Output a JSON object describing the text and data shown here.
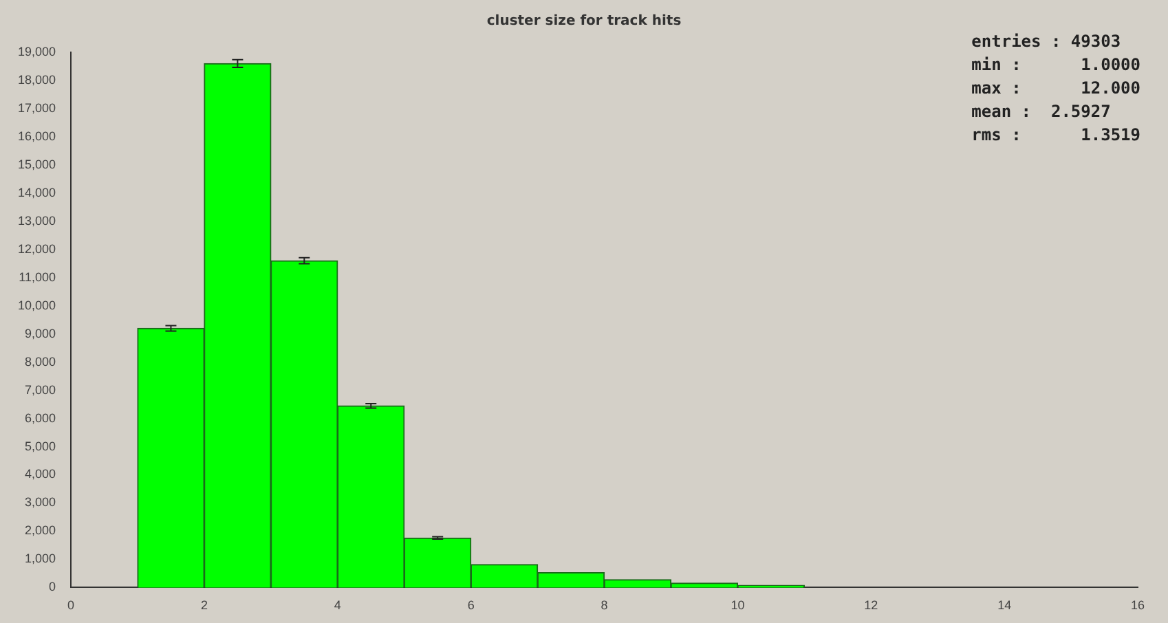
{
  "chart_data": {
    "type": "histogram",
    "title": "cluster size for track hits",
    "bins": [
      1,
      2,
      3,
      4,
      5,
      6,
      7,
      8,
      9,
      10,
      11,
      12,
      13
    ],
    "values": [
      9200,
      18600,
      11600,
      6450,
      1760,
      820,
      530,
      280,
      160,
      80,
      null,
      null
    ],
    "errors": [
      96,
      136,
      108,
      80,
      42,
      null,
      null,
      null,
      null,
      null,
      null,
      null
    ],
    "color": "#00ff00",
    "xlim": [
      0,
      16
    ],
    "xticks": [
      0,
      2,
      4,
      6,
      8,
      10,
      12,
      14,
      16
    ],
    "ylim": [
      0,
      19000
    ],
    "yticks": [
      0,
      {
        "value": 1000,
        "label": "1,000"
      },
      {
        "value": 2000,
        "label": "2,000"
      },
      {
        "value": 3000,
        "label": "3,000"
      },
      {
        "value": 4000,
        "label": "4,000"
      },
      {
        "value": 5000,
        "label": "5,000"
      },
      {
        "value": 6000,
        "label": "6,000"
      },
      {
        "value": 7000,
        "label": "7,000"
      },
      {
        "value": 8000,
        "label": "8,000"
      },
      {
        "value": 9000,
        "label": "9,000"
      },
      {
        "value": 10000,
        "label": "10,000"
      },
      {
        "value": 11000,
        "label": "11,000"
      },
      {
        "value": 12000,
        "label": "12,000"
      },
      {
        "value": 13000,
        "label": "13,000"
      },
      {
        "value": 14000,
        "label": "14,000"
      },
      {
        "value": 15000,
        "label": "15,000"
      },
      {
        "value": 16000,
        "label": "16,000"
      },
      {
        "value": 17000,
        "label": "17,000"
      },
      {
        "value": 18000,
        "label": "18,000"
      },
      {
        "value": 19000,
        "label": "19,000"
      }
    ],
    "annotations": [
      "entries : 49303",
      "min :      1.0000",
      "max :      12.000",
      "mean :  2.5927",
      "rms :      1.3519"
    ]
  }
}
